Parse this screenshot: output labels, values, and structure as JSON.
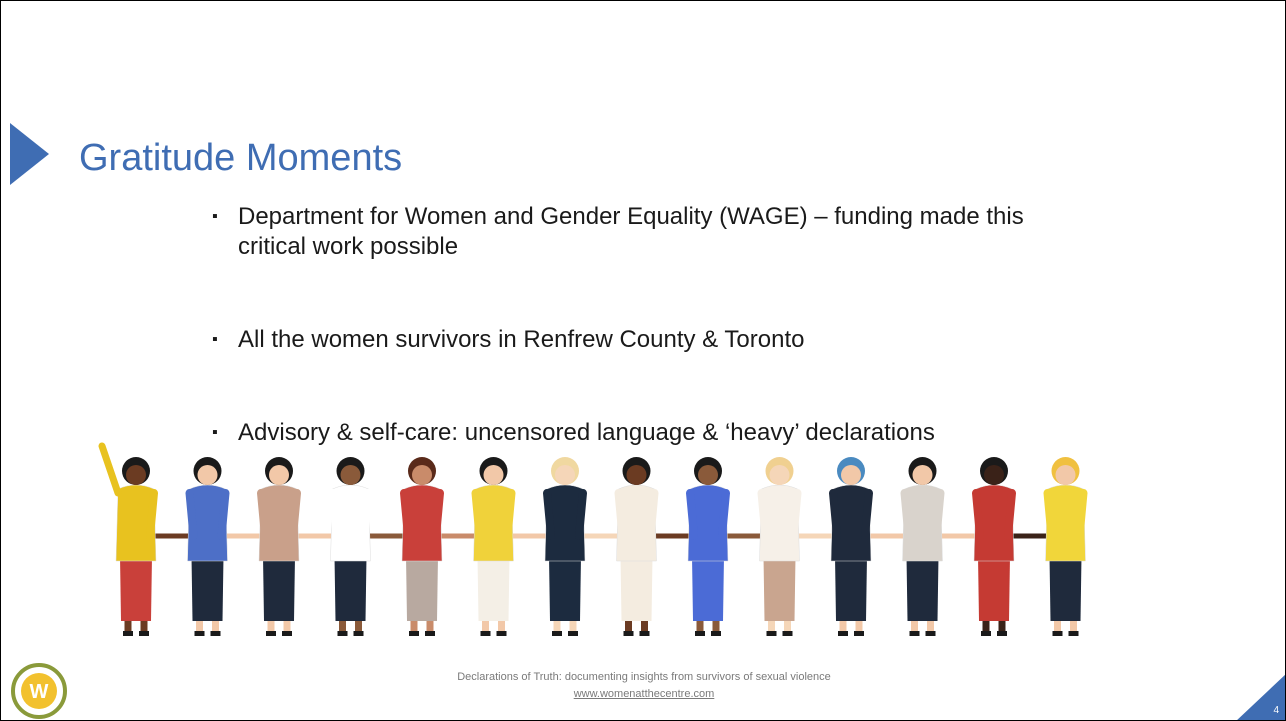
{
  "slide": {
    "title": "Gratitude Moments",
    "bullets": [
      "Department for Women and Gender Equality (WAGE) – funding made this critical work possible",
      "All the women survivors in Renfrew County & Toronto",
      "Advisory & self-care: uncensored language & ‘heavy’ declarations"
    ],
    "footer": {
      "text": "Declarations of Truth: documenting insights from survivors of sexual violence",
      "url": "www.womenatthecentre.com"
    },
    "page_number": 4
  }
}
